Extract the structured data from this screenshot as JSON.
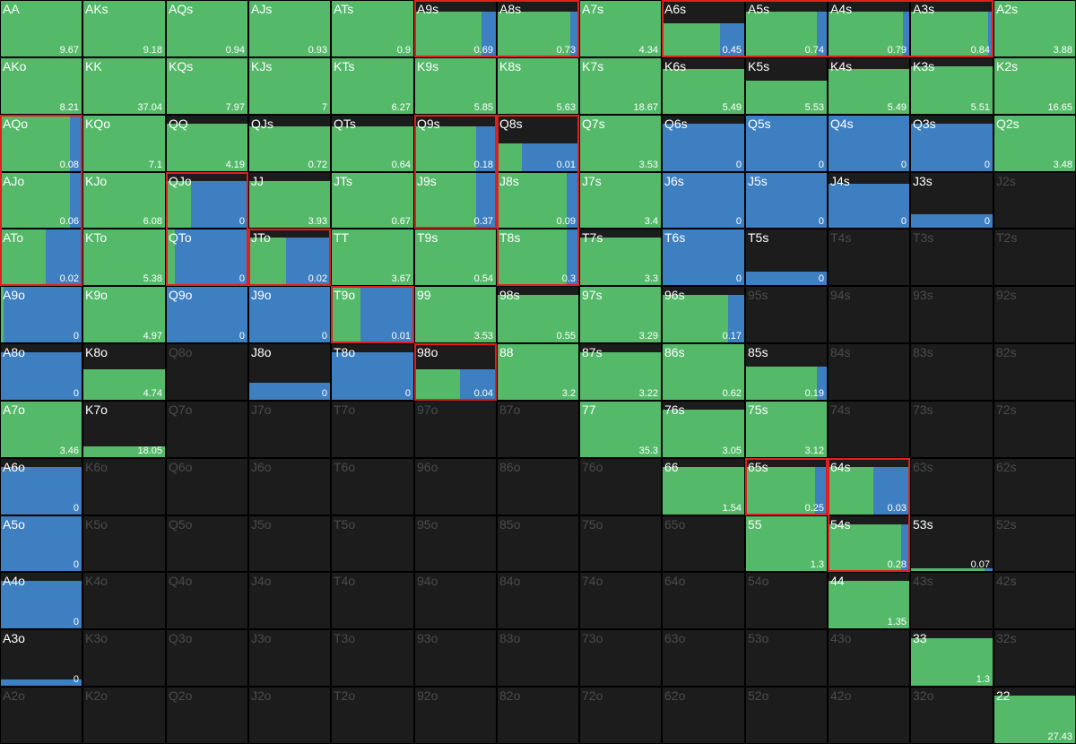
{
  "grid": {
    "rows": [
      [
        {
          "label": "AA",
          "value": 9.67,
          "green": 1,
          "height": 1
        },
        {
          "label": "AKs",
          "value": 9.18,
          "green": 1,
          "height": 1
        },
        {
          "label": "AQs",
          "value": 0.94,
          "green": 1,
          "height": 1
        },
        {
          "label": "AJs",
          "value": 0.93,
          "green": 1,
          "height": 1
        },
        {
          "label": "ATs",
          "value": 0.9,
          "green": 1,
          "height": 1
        },
        {
          "label": "A9s",
          "value": 0.69,
          "green": 0.82,
          "blue": 0.18,
          "height": 0.8
        },
        {
          "label": "A8s",
          "value": 0.73,
          "green": 0.9,
          "blue": 0.1,
          "height": 0.8
        },
        {
          "label": "A7s",
          "value": 4.34,
          "green": 1,
          "height": 1
        },
        {
          "label": "A6s",
          "value": 0.45,
          "green": 0.7,
          "blue": 0.3,
          "height": 0.6
        },
        {
          "label": "A5s",
          "value": 0.74,
          "green": 0.88,
          "blue": 0.12,
          "height": 0.8
        },
        {
          "label": "A4s",
          "value": 0.79,
          "green": 0.92,
          "blue": 0.08,
          "height": 0.8
        },
        {
          "label": "A3s",
          "value": 0.84,
          "green": 0.95,
          "blue": 0.05,
          "height": 0.8
        },
        {
          "label": "A2s",
          "value": 3.88,
          "green": 1,
          "height": 1
        }
      ],
      [
        {
          "label": "AKo",
          "value": 8.21,
          "green": 1,
          "height": 1
        },
        {
          "label": "KK",
          "value": 37.04,
          "green": 1,
          "height": 1
        },
        {
          "label": "KQs",
          "value": 7.97,
          "green": 1,
          "height": 1
        },
        {
          "label": "KJs",
          "value": 7,
          "green": 1,
          "height": 1
        },
        {
          "label": "KTs",
          "value": 6.27,
          "green": 1,
          "height": 1
        },
        {
          "label": "K9s",
          "value": 5.85,
          "green": 1,
          "height": 1
        },
        {
          "label": "K8s",
          "value": 5.63,
          "green": 1,
          "height": 1
        },
        {
          "label": "K7s",
          "value": 18.67,
          "green": 1,
          "height": 1
        },
        {
          "label": "K6s",
          "value": 5.49,
          "green": 1,
          "height": 0.8
        },
        {
          "label": "K5s",
          "value": 5.53,
          "green": 1,
          "height": 0.6
        },
        {
          "label": "K4s",
          "value": 5.49,
          "green": 1,
          "height": 0.8
        },
        {
          "label": "K3s",
          "value": 5.51,
          "green": 1,
          "height": 0.85
        },
        {
          "label": "K2s",
          "value": 16.65,
          "green": 1,
          "height": 1
        }
      ],
      [
        {
          "label": "AQo",
          "value": 0.08,
          "green": 0.85,
          "blue": 0.15,
          "height": 1
        },
        {
          "label": "KQo",
          "value": 7.1,
          "green": 1,
          "height": 1
        },
        {
          "label": "QQ",
          "value": 4.19,
          "green": 1,
          "height": 0.85
        },
        {
          "label": "QJs",
          "value": 0.72,
          "green": 1,
          "height": 0.8
        },
        {
          "label": "QTs",
          "value": 0.64,
          "green": 1,
          "height": 0.8
        },
        {
          "label": "Q9s",
          "value": 0.18,
          "green": 0.75,
          "blue": 0.25,
          "height": 0.8
        },
        {
          "label": "Q8s",
          "value": 0.01,
          "green": 0.3,
          "blue": 0.7,
          "height": 0.5
        },
        {
          "label": "Q7s",
          "value": 3.53,
          "green": 1,
          "height": 1
        },
        {
          "label": "Q6s",
          "value": 0,
          "blue": 1,
          "height": 0.85
        },
        {
          "label": "Q5s",
          "value": 0,
          "blue": 1,
          "height": 1
        },
        {
          "label": "Q4s",
          "value": 0,
          "blue": 1,
          "height": 1
        },
        {
          "label": "Q3s",
          "value": 0,
          "blue": 1,
          "height": 0.85
        },
        {
          "label": "Q2s",
          "value": 3.48,
          "green": 1,
          "height": 1
        }
      ],
      [
        {
          "label": "AJo",
          "value": 0.06,
          "green": 0.85,
          "blue": 0.15,
          "height": 1
        },
        {
          "label": "KJo",
          "value": 6.08,
          "green": 1,
          "height": 1
        },
        {
          "label": "QJo",
          "value": 0,
          "green": 0.3,
          "blue": 0.7,
          "height": 0.85
        },
        {
          "label": "JJ",
          "value": 3.93,
          "green": 1,
          "height": 0.85
        },
        {
          "label": "JTs",
          "value": 0.67,
          "green": 1,
          "height": 1
        },
        {
          "label": "J9s",
          "value": 0.37,
          "green": 0.75,
          "blue": 0.25,
          "height": 1
        },
        {
          "label": "J8s",
          "value": 0.09,
          "green": 0.85,
          "blue": 0.15,
          "height": 1
        },
        {
          "label": "J7s",
          "value": 3.4,
          "green": 1,
          "height": 1
        },
        {
          "label": "J6s",
          "value": 0,
          "blue": 1,
          "height": 1
        },
        {
          "label": "J5s",
          "value": 0,
          "blue": 1,
          "height": 1
        },
        {
          "label": "J4s",
          "value": 0,
          "blue": 1,
          "height": 0.8
        },
        {
          "label": "J3s",
          "value": 0,
          "blue": 1,
          "height": 0.25
        },
        {
          "label": "J2s"
        }
      ],
      [
        {
          "label": "ATo",
          "value": 0.02,
          "green": 0.55,
          "blue": 0.45,
          "height": 1
        },
        {
          "label": "KTo",
          "value": 5.38,
          "green": 1,
          "height": 1
        },
        {
          "label": "QTo",
          "value": 0,
          "green": 0.1,
          "blue": 0.9,
          "height": 1
        },
        {
          "label": "JTo",
          "value": 0.02,
          "green": 0.45,
          "blue": 0.55,
          "height": 0.85
        },
        {
          "label": "TT",
          "value": 3.67,
          "green": 1,
          "height": 1
        },
        {
          "label": "T9s",
          "value": 0.54,
          "green": 1,
          "height": 1
        },
        {
          "label": "T8s",
          "value": 0.3,
          "green": 0.85,
          "blue": 0.15,
          "height": 1
        },
        {
          "label": "T7s",
          "value": 3.3,
          "green": 1,
          "height": 0.85
        },
        {
          "label": "T6s",
          "value": 0,
          "blue": 1,
          "height": 1
        },
        {
          "label": "T5s",
          "value": 0,
          "blue": 1,
          "height": 0.25
        },
        {
          "label": "T4s"
        },
        {
          "label": "T3s"
        },
        {
          "label": "T2s"
        }
      ],
      [
        {
          "label": "A9o",
          "value": 0,
          "green": 0.03,
          "blue": 0.97,
          "height": 1
        },
        {
          "label": "K9o",
          "value": 4.97,
          "green": 1,
          "height": 1
        },
        {
          "label": "Q9o",
          "value": 0,
          "blue": 1,
          "height": 1
        },
        {
          "label": "J9o",
          "value": 0,
          "blue": 1,
          "height": 1
        },
        {
          "label": "T9o",
          "value": 0.01,
          "green": 0.35,
          "blue": 0.65,
          "height": 1
        },
        {
          "label": "99",
          "value": 3.53,
          "green": 1,
          "height": 1
        },
        {
          "label": "98s",
          "value": 0.55,
          "green": 1,
          "height": 0.85
        },
        {
          "label": "97s",
          "value": 3.29,
          "green": 1,
          "height": 1
        },
        {
          "label": "96s",
          "value": 0.17,
          "green": 0.8,
          "blue": 0.2,
          "height": 0.85
        },
        {
          "label": "95s"
        },
        {
          "label": "94s"
        },
        {
          "label": "93s"
        },
        {
          "label": "92s"
        }
      ],
      [
        {
          "label": "A8o",
          "value": 0,
          "blue": 1,
          "height": 0.85
        },
        {
          "label": "K8o",
          "value": 4.74,
          "green": 1,
          "height": 0.55
        },
        {
          "label": "Q8o"
        },
        {
          "label": "J8o",
          "value": 0,
          "blue": 1,
          "height": 0.3
        },
        {
          "label": "T8o",
          "value": 0,
          "blue": 1,
          "height": 0.85
        },
        {
          "label": "98o",
          "value": 0.04,
          "green": 0.55,
          "blue": 0.45,
          "height": 0.55
        },
        {
          "label": "88",
          "value": 3.2,
          "green": 1,
          "height": 1
        },
        {
          "label": "87s",
          "value": 3.22,
          "green": 1,
          "height": 0.85
        },
        {
          "label": "86s",
          "value": 0.62,
          "green": 1,
          "height": 1
        },
        {
          "label": "85s",
          "value": 0.19,
          "green": 0.88,
          "blue": 0.12,
          "height": 0.6
        },
        {
          "label": "84s"
        },
        {
          "label": "83s"
        },
        {
          "label": "82s"
        }
      ],
      [
        {
          "label": "A7o",
          "value": 3.46,
          "green": 1,
          "height": 1
        },
        {
          "label": "K7o",
          "value": 18.05,
          "green": 1,
          "height": 0.2
        },
        {
          "label": "Q7o"
        },
        {
          "label": "J7o"
        },
        {
          "label": "T7o"
        },
        {
          "label": "97o"
        },
        {
          "label": "87o"
        },
        {
          "label": "77",
          "value": 35.3,
          "green": 1,
          "height": 1
        },
        {
          "label": "76s",
          "value": 3.05,
          "green": 1,
          "height": 0.85
        },
        {
          "label": "75s",
          "value": 3.12,
          "green": 1,
          "height": 1
        },
        {
          "label": "74s"
        },
        {
          "label": "73s"
        },
        {
          "label": "72s"
        }
      ],
      [
        {
          "label": "A6o",
          "value": 0,
          "blue": 1,
          "height": 0.85
        },
        {
          "label": "K6o"
        },
        {
          "label": "Q6o"
        },
        {
          "label": "J6o"
        },
        {
          "label": "T6o"
        },
        {
          "label": "96o"
        },
        {
          "label": "86o"
        },
        {
          "label": "76o"
        },
        {
          "label": "66",
          "value": 1.54,
          "green": 1,
          "height": 0.85
        },
        {
          "label": "65s",
          "value": 0.25,
          "green": 0.85,
          "blue": 0.15,
          "height": 0.85
        },
        {
          "label": "64s",
          "value": 0.03,
          "green": 0.55,
          "blue": 0.45,
          "height": 0.85
        },
        {
          "label": "63s"
        },
        {
          "label": "62s"
        }
      ],
      [
        {
          "label": "A5o",
          "value": 0,
          "blue": 1,
          "height": 1
        },
        {
          "label": "K5o"
        },
        {
          "label": "Q5o"
        },
        {
          "label": "J5o"
        },
        {
          "label": "T5o"
        },
        {
          "label": "95o"
        },
        {
          "label": "85o"
        },
        {
          "label": "75o"
        },
        {
          "label": "65o"
        },
        {
          "label": "55",
          "value": 1.3,
          "green": 1,
          "height": 1
        },
        {
          "label": "54s",
          "value": 0.28,
          "green": 0.9,
          "blue": 0.1,
          "height": 0.85
        },
        {
          "label": "53s",
          "value": 0.07,
          "green": 0.9,
          "blue": 0.1,
          "height": 0.05
        },
        {
          "label": "52s"
        }
      ],
      [
        {
          "label": "A4o",
          "value": 0,
          "blue": 1,
          "height": 0.85
        },
        {
          "label": "K4o"
        },
        {
          "label": "Q4o"
        },
        {
          "label": "J4o"
        },
        {
          "label": "T4o"
        },
        {
          "label": "94o"
        },
        {
          "label": "84o"
        },
        {
          "label": "74o"
        },
        {
          "label": "64o"
        },
        {
          "label": "54o"
        },
        {
          "label": "44",
          "value": 1.35,
          "green": 1,
          "height": 0.85
        },
        {
          "label": "43s"
        },
        {
          "label": "42s"
        }
      ],
      [
        {
          "label": "A3o",
          "value": 0,
          "blue": 1,
          "height": 0.12
        },
        {
          "label": "K3o"
        },
        {
          "label": "Q3o"
        },
        {
          "label": "J3o"
        },
        {
          "label": "T3o"
        },
        {
          "label": "93o"
        },
        {
          "label": "83o"
        },
        {
          "label": "73o"
        },
        {
          "label": "63o"
        },
        {
          "label": "53o"
        },
        {
          "label": "43o"
        },
        {
          "label": "33",
          "value": 1.3,
          "green": 1,
          "height": 0.85
        },
        {
          "label": "32s"
        }
      ],
      [
        {
          "label": "A2o"
        },
        {
          "label": "K2o"
        },
        {
          "label": "Q2o"
        },
        {
          "label": "J2o"
        },
        {
          "label": "T2o"
        },
        {
          "label": "92o"
        },
        {
          "label": "82o"
        },
        {
          "label": "72o"
        },
        {
          "label": "62o"
        },
        {
          "label": "52o"
        },
        {
          "label": "42o"
        },
        {
          "label": "32o"
        },
        {
          "label": "22",
          "value": 27.43,
          "green": 1,
          "height": 0.85
        }
      ]
    ]
  }
}
